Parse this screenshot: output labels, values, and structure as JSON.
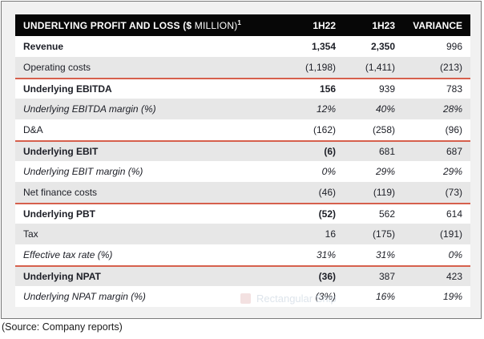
{
  "chart_data": {
    "type": "table",
    "title": "UNDERLYING PROFIT AND LOSS ($ MILLION)",
    "title_footnote": "1",
    "columns": [
      "1H22",
      "1H23",
      "VARIANCE"
    ],
    "rows": [
      {
        "label": "Revenue",
        "values": [
          "1,354",
          "2,350",
          "996"
        ]
      },
      {
        "label": "Operating costs",
        "values": [
          "(1,198)",
          "(1,411)",
          "(213)"
        ]
      },
      {
        "label": "Underlying EBITDA",
        "values": [
          "156",
          "939",
          "783"
        ]
      },
      {
        "label": "Underlying EBITDA margin (%)",
        "values": [
          "12%",
          "40%",
          "28%"
        ]
      },
      {
        "label": "D&A",
        "values": [
          "(162)",
          "(258)",
          "(96)"
        ]
      },
      {
        "label": "Underlying EBIT",
        "values": [
          "(6)",
          "681",
          "687"
        ]
      },
      {
        "label": "Underlying EBIT margin (%)",
        "values": [
          "0%",
          "29%",
          "29%"
        ]
      },
      {
        "label": "Net finance costs",
        "values": [
          "(46)",
          "(119)",
          "(73)"
        ]
      },
      {
        "label": "Underlying PBT",
        "values": [
          "(52)",
          "562",
          "614"
        ]
      },
      {
        "label": "Tax",
        "values": [
          "16",
          "(175)",
          "(191)"
        ]
      },
      {
        "label": "Effective tax rate (%)",
        "values": [
          "31%",
          "31%",
          "0%"
        ]
      },
      {
        "label": "Underlying NPAT",
        "values": [
          "(36)",
          "387",
          "423"
        ]
      },
      {
        "label": "Underlying NPAT margin (%)",
        "values": [
          "(3%)",
          "16%",
          "19%"
        ]
      }
    ]
  },
  "header": {
    "title_bold": "UNDERLYING PROFIT AND LOSS ($ ",
    "title_light": "MILLION)",
    "footnote": "1"
  },
  "table_meta": {
    "row_styles": [
      {
        "emphasis": "bold",
        "shade": false,
        "sep_above": false,
        "bold_values": [
          true,
          true,
          false
        ]
      },
      {
        "emphasis": "regular",
        "shade": true,
        "sep_above": false,
        "bold_values": [
          false,
          false,
          false
        ]
      },
      {
        "emphasis": "bold",
        "shade": false,
        "sep_above": true,
        "bold_values": [
          true,
          false,
          false
        ]
      },
      {
        "emphasis": "italic",
        "shade": true,
        "sep_above": false,
        "bold_values": [
          false,
          false,
          false
        ]
      },
      {
        "emphasis": "regular",
        "shade": false,
        "sep_above": false,
        "bold_values": [
          false,
          false,
          false
        ]
      },
      {
        "emphasis": "bold",
        "shade": true,
        "sep_above": true,
        "bold_values": [
          true,
          false,
          false
        ]
      },
      {
        "emphasis": "italic",
        "shade": false,
        "sep_above": false,
        "bold_values": [
          false,
          false,
          false
        ]
      },
      {
        "emphasis": "regular",
        "shade": true,
        "sep_above": false,
        "bold_values": [
          false,
          false,
          false
        ]
      },
      {
        "emphasis": "bold",
        "shade": false,
        "sep_above": true,
        "bold_values": [
          true,
          false,
          false
        ]
      },
      {
        "emphasis": "regular",
        "shade": true,
        "sep_above": false,
        "bold_values": [
          false,
          false,
          false
        ]
      },
      {
        "emphasis": "italic",
        "shade": false,
        "sep_above": false,
        "bold_values": [
          false,
          false,
          false
        ]
      },
      {
        "emphasis": "bold",
        "shade": true,
        "sep_above": true,
        "bold_values": [
          true,
          false,
          false
        ]
      },
      {
        "emphasis": "italic",
        "shade": false,
        "sep_above": false,
        "bold_values": [
          false,
          false,
          false
        ]
      }
    ]
  },
  "overlay": {
    "snip_ghost_label": "Rectangular Snip"
  },
  "footer": {
    "source_note": "(Source: Company reports)"
  },
  "colors": {
    "header_bg": "#070707",
    "header_text": "#ffffff",
    "accent_red_separator": "#d6604d",
    "shade_row": "#e7e7e7",
    "panel_bg": "#f1f1f1",
    "panel_border": "#7a7a7a",
    "body_text": "#1c1e26",
    "ghost_text": "#c3cfdc"
  }
}
